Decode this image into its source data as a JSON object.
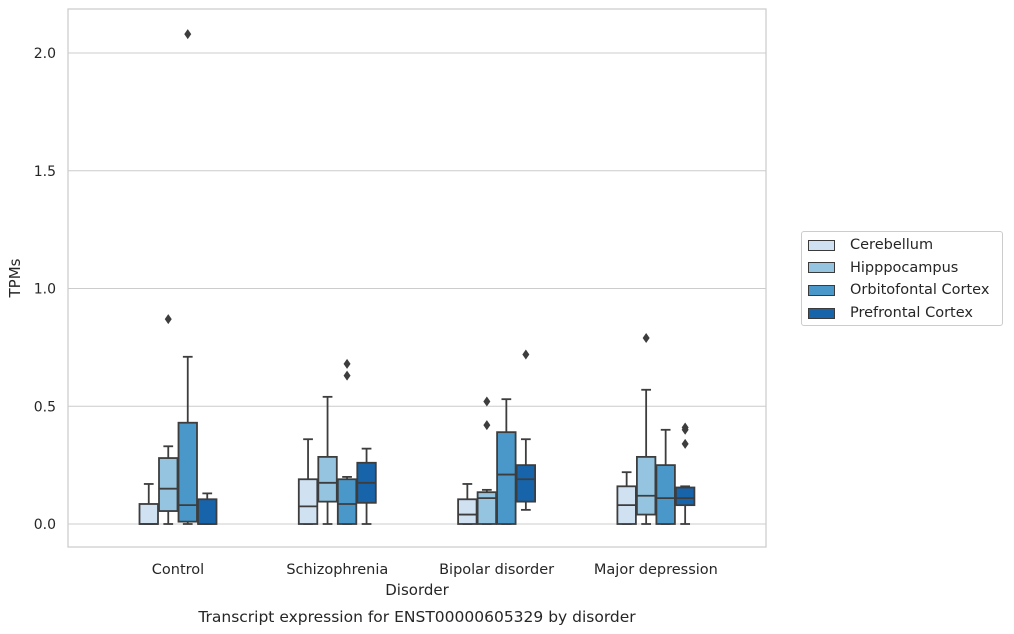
{
  "chart_data": {
    "type": "box",
    "title": "Transcript expression for ENST00000605329 by disorder",
    "xlabel": "Disorder",
    "ylabel": "TPMs",
    "ylim": [
      -0.1,
      2.2
    ],
    "yticks": [
      0.0,
      0.5,
      1.0,
      1.5,
      2.0
    ],
    "ytick_labels": [
      "0.0",
      "0.5",
      "1.0",
      "1.5",
      "2.0"
    ],
    "categories": [
      "Control",
      "Schizophrenia",
      "Bipolar disorder",
      "Major depression"
    ],
    "grid": "horizontal",
    "legend_position": "right",
    "series": [
      {
        "name": "Cerebellum",
        "color": "#d0e1f2",
        "boxes": [
          {
            "whisker_low": 0.0,
            "q1": 0.0,
            "median": 0.0,
            "q3": 0.085,
            "whisker_high": 0.17,
            "outliers": []
          },
          {
            "whisker_low": 0.0,
            "q1": 0.0,
            "median": 0.075,
            "q3": 0.19,
            "whisker_high": 0.36,
            "outliers": []
          },
          {
            "whisker_low": 0.0,
            "q1": 0.0,
            "median": 0.04,
            "q3": 0.105,
            "whisker_high": 0.17,
            "outliers": []
          },
          {
            "whisker_low": 0.0,
            "q1": 0.0,
            "median": 0.08,
            "q3": 0.16,
            "whisker_high": 0.22,
            "outliers": []
          }
        ]
      },
      {
        "name": "Hipppocampus",
        "color": "#94c4df",
        "boxes": [
          {
            "whisker_low": 0.0,
            "q1": 0.055,
            "median": 0.15,
            "q3": 0.28,
            "whisker_high": 0.33,
            "outliers": [
              0.87
            ]
          },
          {
            "whisker_low": 0.0,
            "q1": 0.095,
            "median": 0.175,
            "q3": 0.285,
            "whisker_high": 0.54,
            "outliers": []
          },
          {
            "whisker_low": 0.0,
            "q1": 0.0,
            "median": 0.11,
            "q3": 0.135,
            "whisker_high": 0.145,
            "outliers": [
              0.42,
              0.52
            ]
          },
          {
            "whisker_low": 0.0,
            "q1": 0.04,
            "median": 0.12,
            "q3": 0.285,
            "whisker_high": 0.57,
            "outliers": [
              0.79
            ]
          }
        ]
      },
      {
        "name": "Orbitofontal Cortex",
        "color": "#4a98c9",
        "boxes": [
          {
            "whisker_low": 0.0,
            "q1": 0.01,
            "median": 0.08,
            "q3": 0.43,
            "whisker_high": 0.71,
            "outliers": [
              2.08
            ]
          },
          {
            "whisker_low": 0.0,
            "q1": 0.0,
            "median": 0.085,
            "q3": 0.19,
            "whisker_high": 0.2,
            "outliers": [
              0.63,
              0.68
            ]
          },
          {
            "whisker_low": 0.0,
            "q1": 0.0,
            "median": 0.21,
            "q3": 0.39,
            "whisker_high": 0.53,
            "outliers": []
          },
          {
            "whisker_low": 0.0,
            "q1": 0.0,
            "median": 0.11,
            "q3": 0.25,
            "whisker_high": 0.4,
            "outliers": []
          }
        ]
      },
      {
        "name": "Prefrontal Cortex",
        "color": "#1764ab",
        "boxes": [
          {
            "whisker_low": 0.0,
            "q1": 0.0,
            "median": 0.0,
            "q3": 0.105,
            "whisker_high": 0.13,
            "outliers": []
          },
          {
            "whisker_low": 0.0,
            "q1": 0.09,
            "median": 0.175,
            "q3": 0.26,
            "whisker_high": 0.32,
            "outliers": []
          },
          {
            "whisker_low": 0.06,
            "q1": 0.095,
            "median": 0.19,
            "q3": 0.25,
            "whisker_high": 0.36,
            "outliers": [
              0.72
            ]
          },
          {
            "whisker_low": 0.0,
            "q1": 0.08,
            "median": 0.11,
            "q3": 0.155,
            "whisker_high": 0.16,
            "outliers": [
              0.34,
              0.4,
              0.41
            ]
          }
        ]
      }
    ]
  }
}
